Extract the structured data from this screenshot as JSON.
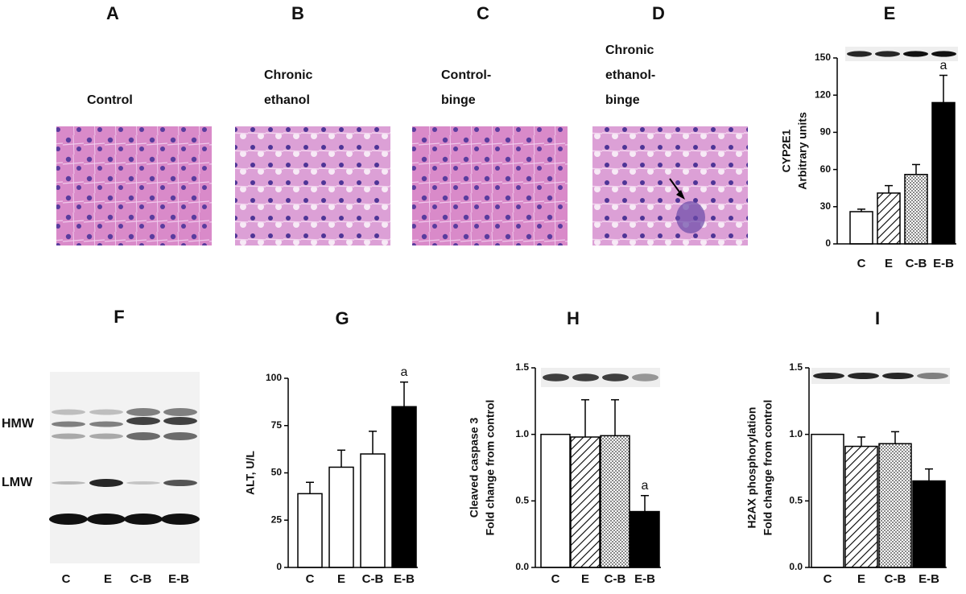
{
  "histology": [
    {
      "label": "A",
      "caption": [
        "Control"
      ]
    },
    {
      "label": "B",
      "caption": [
        "Chronic",
        "ethanol"
      ]
    },
    {
      "label": "C",
      "caption": [
        "Control-",
        "binge"
      ]
    },
    {
      "label": "D",
      "caption": [
        "Chronic",
        "ethanol-",
        "binge"
      ]
    }
  ],
  "blot": {
    "label": "F",
    "bands": [
      "HMW",
      "LMW"
    ],
    "categories": [
      "C",
      "E",
      "C-B",
      "E-B"
    ]
  },
  "chart_data": [
    {
      "type": "bar",
      "title": "E",
      "ylabel": [
        "CYP2E1",
        "Arbitrary units"
      ],
      "categories": [
        "C",
        "E",
        "C-B",
        "E-B"
      ],
      "values": [
        26,
        41,
        56,
        114
      ],
      "errors": [
        2,
        6,
        8,
        22
      ],
      "markers": [
        null,
        null,
        null,
        "a"
      ],
      "fills": [
        "#ffffff",
        "hatch",
        "dots",
        "#000000"
      ],
      "ylim": [
        0,
        150
      ],
      "yticks": [
        0,
        30,
        60,
        90,
        120,
        150
      ]
    },
    {
      "type": "bar",
      "title": "G",
      "ylabel": [
        "ALT, U/L"
      ],
      "categories": [
        "C",
        "E",
        "C-B",
        "E-B"
      ],
      "values": [
        39,
        53,
        60,
        85
      ],
      "errors": [
        6,
        9,
        12,
        13
      ],
      "markers": [
        null,
        null,
        null,
        "a"
      ],
      "fills": [
        "#ffffff",
        "#ffffff",
        "#ffffff",
        "#000000"
      ],
      "ylim": [
        0,
        100
      ],
      "yticks": [
        0,
        25,
        50,
        75,
        100
      ]
    },
    {
      "type": "bar",
      "title": "H",
      "ylabel": [
        "Cleaved caspase 3",
        "Fold change from control"
      ],
      "categories": [
        "C",
        "E",
        "C-B",
        "E-B"
      ],
      "values": [
        1.0,
        0.98,
        0.99,
        0.42
      ],
      "errors": [
        null,
        0.28,
        0.27,
        0.12
      ],
      "markers": [
        null,
        null,
        null,
        "a"
      ],
      "fills": [
        "#ffffff",
        "hatch",
        "dots",
        "#000000"
      ],
      "ylim": [
        0,
        1.5
      ],
      "yticks": [
        {
          "value": 0,
          "label": "0.0"
        },
        0.5,
        {
          "value": 1,
          "label": "1.0"
        },
        1.5
      ]
    },
    {
      "type": "bar",
      "title": "I",
      "ylabel": [
        "H2AX phosphorylation",
        "Fold change from control"
      ],
      "categories": [
        "C",
        "E",
        "C-B",
        "E-B"
      ],
      "values": [
        1.0,
        0.91,
        0.93,
        0.65
      ],
      "errors": [
        null,
        0.07,
        0.09,
        0.09
      ],
      "markers": [
        null,
        null,
        null,
        null
      ],
      "fills": [
        "#ffffff",
        "hatch",
        "dots",
        "#000000"
      ],
      "ylim": [
        0,
        1.5
      ],
      "yticks": [
        {
          "value": 0,
          "label": "0.0"
        },
        0.5,
        {
          "value": 1,
          "label": "1.0"
        },
        1.5
      ]
    }
  ]
}
